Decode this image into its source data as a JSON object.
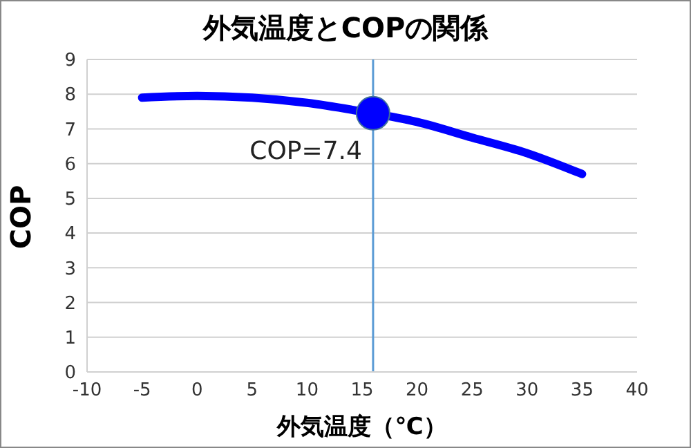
{
  "chart_data": {
    "type": "line",
    "title": "外気温度とCOPの関係",
    "xlabel": "外気温度（℃）",
    "ylabel": "COP",
    "series": [
      {
        "color": "#0000ff",
        "x": [
          -5,
          0,
          5,
          10,
          15,
          20,
          25,
          30,
          35
        ],
        "values": [
          7.9,
          7.95,
          7.9,
          7.75,
          7.5,
          7.2,
          6.75,
          6.3,
          5.7
        ],
        "marker": "none"
      },
      {
        "type": "scatter",
        "color": "#0000ff",
        "x": [
          16
        ],
        "values": [
          7.45
        ],
        "marker": "circle"
      }
    ],
    "xlim": [
      -10,
      40
    ],
    "xticks": [
      -10,
      -5,
      0,
      5,
      10,
      15,
      20,
      25,
      30,
      35,
      40
    ],
    "ylim": [
      0,
      9
    ],
    "yticks": [
      0,
      1,
      2,
      3,
      4,
      5,
      6,
      7,
      8,
      9
    ],
    "grid": "y",
    "ref_lines": [
      {
        "axis": "x",
        "value": 16,
        "color": "#5b9bd5"
      }
    ],
    "annotations": [
      {
        "text": "COP=7.4",
        "x": 16,
        "y": 7.4
      }
    ]
  }
}
